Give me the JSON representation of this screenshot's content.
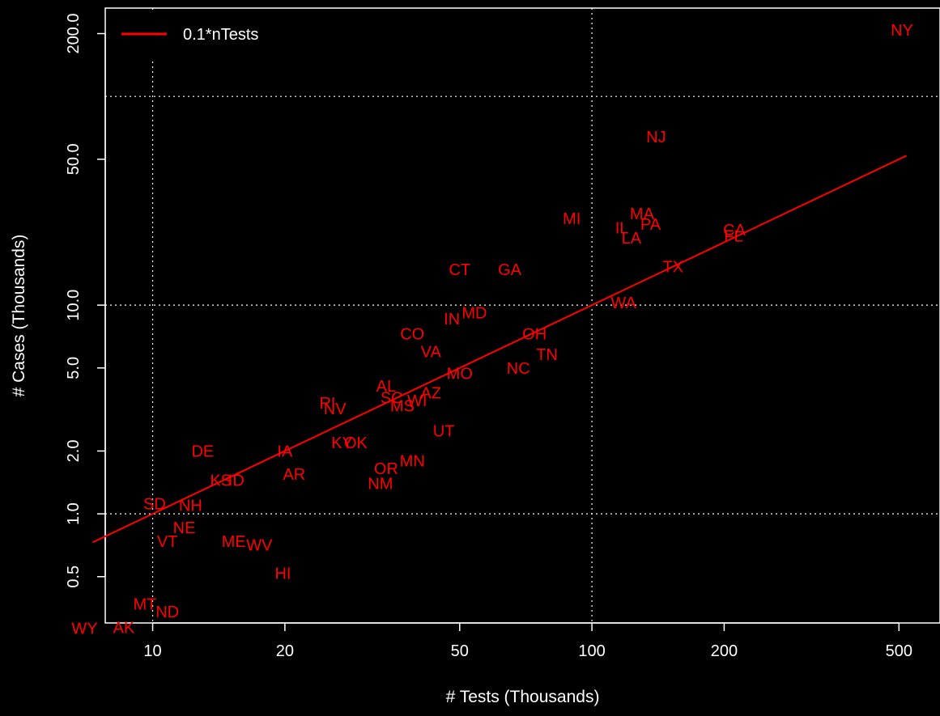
{
  "chart_data": {
    "type": "scatter",
    "title": "",
    "xlabel": "# Tests (Thousands)",
    "ylabel": "# Cases (Thousands)",
    "xscale": "log",
    "yscale": "log",
    "xlim": [
      7.8,
      620
    ],
    "ylim": [
      0.3,
      265
    ],
    "xticks": [
      10,
      20,
      50,
      100,
      200,
      500
    ],
    "xtick_labels": [
      "10",
      "20",
      "50",
      "100",
      "200",
      "500"
    ],
    "yticks": [
      0.5,
      1.0,
      2.0,
      5.0,
      10.0,
      50.0,
      200.0
    ],
    "ytick_labels": [
      "0.5",
      "1.0",
      "2.0",
      "5.0",
      "10.0",
      "50.0",
      "200.0"
    ],
    "grid": "dotted",
    "grid_x": [
      10,
      100
    ],
    "grid_y": [
      1.0,
      10.0,
      100
    ],
    "legend_position": "top-left",
    "colors": {
      "points": "#ff0000",
      "line": "#ff0000",
      "background": "#000000",
      "foreground": "#ffffff"
    },
    "line": {
      "name": "0.1*nTests",
      "x": [
        7.3,
        520
      ]
    },
    "points": [
      {
        "label": "NY",
        "x": 508,
        "y": 208
      },
      {
        "label": "NJ",
        "x": 140,
        "y": 64
      },
      {
        "label": "MI",
        "x": 90,
        "y": 26
      },
      {
        "label": "MA",
        "x": 130,
        "y": 27.5
      },
      {
        "label": "PA",
        "x": 136,
        "y": 24.5
      },
      {
        "label": "IL",
        "x": 117,
        "y": 23.5
      },
      {
        "label": "LA",
        "x": 123,
        "y": 21
      },
      {
        "label": "CA",
        "x": 211,
        "y": 23
      },
      {
        "label": "FL",
        "x": 210,
        "y": 21.5
      },
      {
        "label": "TX",
        "x": 153,
        "y": 15.3
      },
      {
        "label": "WA",
        "x": 118,
        "y": 10.3
      },
      {
        "label": "CT",
        "x": 50,
        "y": 14.8
      },
      {
        "label": "GA",
        "x": 65,
        "y": 14.8
      },
      {
        "label": "MD",
        "x": 54,
        "y": 9.2
      },
      {
        "label": "IN",
        "x": 48,
        "y": 8.6
      },
      {
        "label": "CO",
        "x": 39,
        "y": 7.3
      },
      {
        "label": "OH",
        "x": 74,
        "y": 7.3
      },
      {
        "label": "VA",
        "x": 43,
        "y": 6.0
      },
      {
        "label": "TN",
        "x": 79,
        "y": 5.8
      },
      {
        "label": "MO",
        "x": 50,
        "y": 4.7
      },
      {
        "label": "NC",
        "x": 68,
        "y": 5.0
      },
      {
        "label": "AL",
        "x": 34,
        "y": 4.1
      },
      {
        "label": "SC",
        "x": 35,
        "y": 3.6
      },
      {
        "label": "WI",
        "x": 40,
        "y": 3.5
      },
      {
        "label": "AZ",
        "x": 43,
        "y": 3.8
      },
      {
        "label": "MS",
        "x": 37,
        "y": 3.3
      },
      {
        "label": "RI",
        "x": 25,
        "y": 3.4
      },
      {
        "label": "NV",
        "x": 26,
        "y": 3.2
      },
      {
        "label": "UT",
        "x": 46,
        "y": 2.5
      },
      {
        "label": "KY",
        "x": 27,
        "y": 2.2
      },
      {
        "label": "OK",
        "x": 29,
        "y": 2.2
      },
      {
        "label": "MN",
        "x": 39,
        "y": 1.8
      },
      {
        "label": "OR",
        "x": 34,
        "y": 1.65
      },
      {
        "label": "NM",
        "x": 33,
        "y": 1.4
      },
      {
        "label": "DE",
        "x": 13,
        "y": 2.0
      },
      {
        "label": "IA",
        "x": 20,
        "y": 2.0
      },
      {
        "label": "AR",
        "x": 21,
        "y": 1.55
      },
      {
        "label": "KS",
        "x": 14.3,
        "y": 1.45
      },
      {
        "label": "ID",
        "x": 15.5,
        "y": 1.45
      },
      {
        "label": "SD",
        "x": 10.1,
        "y": 1.12
      },
      {
        "label": "NH",
        "x": 12.2,
        "y": 1.1
      },
      {
        "label": "NE",
        "x": 11.8,
        "y": 0.86
      },
      {
        "label": "VT",
        "x": 10.8,
        "y": 0.74
      },
      {
        "label": "ME",
        "x": 15.3,
        "y": 0.74
      },
      {
        "label": "WV",
        "x": 17.5,
        "y": 0.71
      },
      {
        "label": "HI",
        "x": 19.8,
        "y": 0.52
      },
      {
        "label": "MT",
        "x": 9.6,
        "y": 0.37
      },
      {
        "label": "ND",
        "x": 10.8,
        "y": 0.34
      },
      {
        "label": "AK",
        "x": 8.6,
        "y": 0.285
      },
      {
        "label": "WY",
        "x": 7.0,
        "y": 0.283
      }
    ]
  }
}
